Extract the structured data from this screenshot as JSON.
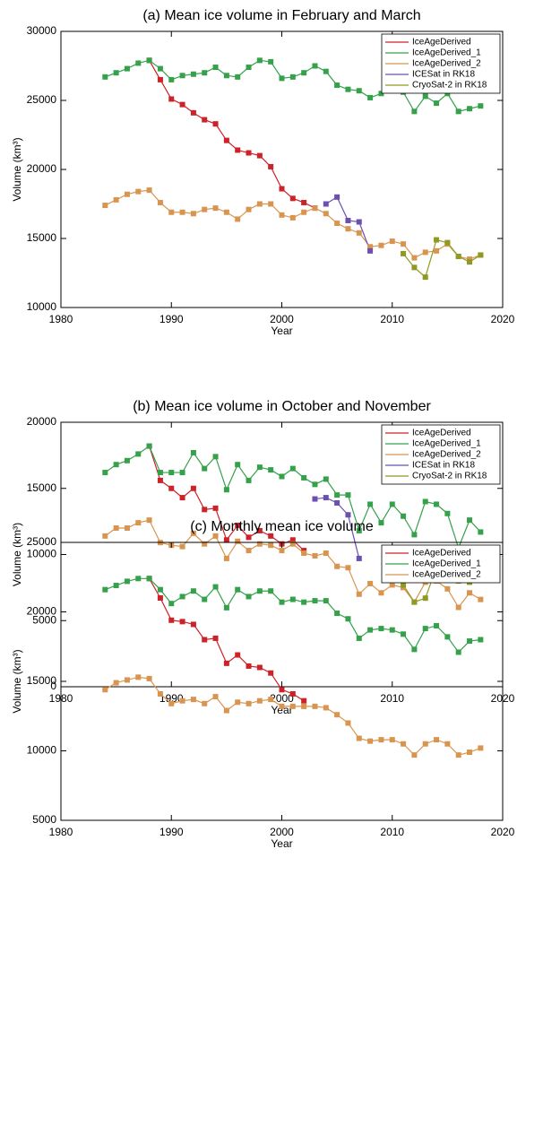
{
  "chart_data": [
    {
      "type": "line",
      "title": "(a) Mean ice volume in February and March",
      "x_label": "Year",
      "y_label": "Volume (km³)",
      "x": [
        1984,
        1985,
        1986,
        1987,
        1988,
        1989,
        1990,
        1991,
        1992,
        1993,
        1994,
        1995,
        1996,
        1997,
        1998,
        1999,
        2000,
        2001,
        2002,
        2003,
        2004,
        2005,
        2006,
        2007,
        2008,
        2009,
        2010,
        2011,
        2012,
        2013,
        2014,
        2015,
        2016,
        2017,
        2018
      ],
      "xlim": [
        1980,
        2020
      ],
      "xticks": [
        1980,
        1990,
        2000,
        2010,
        2020
      ],
      "ylim": [
        10000,
        30000
      ],
      "yticks": [
        10000,
        15000,
        20000,
        25000,
        30000
      ],
      "legend": "upper right",
      "series": [
        {
          "name": "IceAgeDerived",
          "color": "#cc2229",
          "values": [
            null,
            null,
            null,
            null,
            27900,
            26500,
            25100,
            24700,
            24100,
            23600,
            23300,
            22100,
            21400,
            21200,
            21000,
            20200,
            18600,
            17900,
            17600,
            17200,
            null,
            null,
            null,
            null,
            null,
            null,
            null,
            null,
            null,
            null,
            null,
            null,
            null,
            null,
            null
          ]
        },
        {
          "name": "IceAgeDerived_1",
          "color": "#35a14b",
          "values": [
            26700,
            27000,
            27300,
            27700,
            27900,
            27300,
            26500,
            26800,
            26900,
            27000,
            27400,
            26800,
            26700,
            27400,
            27900,
            27800,
            26600,
            26700,
            27000,
            27500,
            27100,
            26100,
            25800,
            25700,
            25200,
            25500,
            25800,
            25600,
            24200,
            25300,
            24800,
            25500,
            24200,
            24400,
            24600
          ]
        },
        {
          "name": "IceAgeDerived_2",
          "color": "#d89550",
          "values": [
            17400,
            17800,
            18200,
            18400,
            18500,
            17600,
            16900,
            16900,
            16800,
            17100,
            17200,
            16900,
            16400,
            17100,
            17500,
            17500,
            16700,
            16500,
            16900,
            17200,
            16800,
            16100,
            15700,
            15400,
            14400,
            14500,
            14800,
            14600,
            13600,
            14000,
            14100,
            14600,
            13700,
            13500,
            13800
          ]
        },
        {
          "name": "ICESat in RK18",
          "color": "#6b50b0",
          "values": [
            null,
            null,
            null,
            null,
            null,
            null,
            null,
            null,
            null,
            null,
            null,
            null,
            null,
            null,
            null,
            null,
            null,
            null,
            null,
            null,
            17500,
            18000,
            16300,
            16200,
            14100,
            null,
            null,
            null,
            null,
            null,
            null,
            null,
            null,
            null,
            null
          ]
        },
        {
          "name": "CryoSat-2 in RK18",
          "color": "#8f9a22",
          "values": [
            null,
            null,
            null,
            null,
            null,
            null,
            null,
            null,
            null,
            null,
            null,
            null,
            null,
            null,
            null,
            null,
            null,
            null,
            null,
            null,
            null,
            null,
            null,
            null,
            null,
            null,
            null,
            13900,
            12900,
            12200,
            14900,
            14700,
            13700,
            13300,
            13800
          ]
        }
      ]
    },
    {
      "type": "line",
      "title": "(b) Mean ice volume in October and November",
      "x_label": "Year",
      "y_label": "Volume (km³)",
      "x": [
        1984,
        1985,
        1986,
        1987,
        1988,
        1989,
        1990,
        1991,
        1992,
        1993,
        1994,
        1995,
        1996,
        1997,
        1998,
        1999,
        2000,
        2001,
        2002,
        2003,
        2004,
        2005,
        2006,
        2007,
        2008,
        2009,
        2010,
        2011,
        2012,
        2013,
        2014,
        2015,
        2016,
        2017,
        2018
      ],
      "xlim": [
        1980,
        2020
      ],
      "xticks": [
        1980,
        1990,
        2000,
        2010,
        2020
      ],
      "ylim": [
        0,
        20000
      ],
      "yticks": [
        0,
        5000,
        10000,
        15000,
        20000
      ],
      "legend": "upper right",
      "series": [
        {
          "name": "IceAgeDerived",
          "color": "#cc2229",
          "values": [
            null,
            null,
            null,
            null,
            18200,
            15600,
            15000,
            14300,
            15000,
            13400,
            13500,
            11100,
            12200,
            11300,
            11800,
            11400,
            10800,
            11100,
            10300,
            null,
            null,
            null,
            null,
            null,
            null,
            null,
            null,
            null,
            null,
            null,
            null,
            null,
            null,
            null,
            null
          ]
        },
        {
          "name": "IceAgeDerived_1",
          "color": "#35a14b",
          "values": [
            16200,
            16800,
            17100,
            17600,
            18200,
            16200,
            16200,
            16200,
            17700,
            16500,
            17400,
            14900,
            16800,
            15600,
            16600,
            16400,
            15900,
            16500,
            15800,
            15300,
            15700,
            14500,
            14500,
            11800,
            13800,
            12400,
            13800,
            12900,
            11500,
            14000,
            13800,
            13100,
            10500,
            12600,
            11700
          ]
        },
        {
          "name": "IceAgeDerived_2",
          "color": "#d89550",
          "values": [
            11400,
            12000,
            12000,
            12400,
            12600,
            10900,
            10700,
            10600,
            11600,
            10800,
            11400,
            9700,
            11000,
            10300,
            10800,
            10700,
            10300,
            10800,
            10100,
            9900,
            10100,
            9100,
            9000,
            7000,
            7800,
            7100,
            7700,
            7500,
            6400,
            7900,
            8000,
            7400,
            6000,
            7100,
            6600
          ]
        },
        {
          "name": "ICESat in RK18",
          "color": "#6b50b0",
          "values": [
            null,
            null,
            null,
            null,
            null,
            null,
            null,
            null,
            null,
            null,
            null,
            null,
            null,
            null,
            null,
            null,
            null,
            null,
            null,
            14200,
            14300,
            13900,
            13000,
            9700,
            null,
            null,
            null,
            null,
            null,
            null,
            null,
            null,
            null,
            null,
            null
          ]
        },
        {
          "name": "CryoSat-2 in RK18",
          "color": "#8f9a22",
          "values": [
            null,
            null,
            null,
            null,
            null,
            null,
            null,
            null,
            null,
            null,
            null,
            null,
            null,
            null,
            null,
            null,
            null,
            null,
            null,
            null,
            null,
            null,
            null,
            null,
            null,
            null,
            null,
            7700,
            6400,
            6700,
            9000,
            8300,
            8000,
            7900,
            8100
          ]
        }
      ]
    },
    {
      "type": "line",
      "title": "(c) Monthly mean ice volume",
      "x_label": "Year",
      "y_label": "Volume (km³)",
      "x": [
        1984,
        1985,
        1986,
        1987,
        1988,
        1989,
        1990,
        1991,
        1992,
        1993,
        1994,
        1995,
        1996,
        1997,
        1998,
        1999,
        2000,
        2001,
        2002,
        2003,
        2004,
        2005,
        2006,
        2007,
        2008,
        2009,
        2010,
        2011,
        2012,
        2013,
        2014,
        2015,
        2016,
        2017,
        2018
      ],
      "xlim": [
        1980,
        2020
      ],
      "xticks": [
        1980,
        1990,
        2000,
        2010,
        2020
      ],
      "ylim": [
        5000,
        25000
      ],
      "yticks": [
        5000,
        10000,
        15000,
        20000,
        25000
      ],
      "legend": "upper right",
      "series": [
        {
          "name": "IceAgeDerived",
          "color": "#cc2229",
          "values": [
            null,
            null,
            null,
            null,
            22400,
            21000,
            19400,
            19300,
            19100,
            18000,
            18100,
            16300,
            16900,
            16100,
            16000,
            15600,
            14400,
            14100,
            13600,
            null,
            null,
            null,
            null,
            null,
            null,
            null,
            null,
            null,
            null,
            null,
            null,
            null,
            null,
            null,
            null
          ]
        },
        {
          "name": "IceAgeDerived_1",
          "color": "#35a14b",
          "values": [
            21600,
            21900,
            22200,
            22400,
            22400,
            21600,
            20600,
            21100,
            21500,
            20900,
            21800,
            20300,
            21600,
            21100,
            21500,
            21500,
            20700,
            20900,
            20700,
            20800,
            20800,
            19900,
            19500,
            18100,
            18700,
            18800,
            18700,
            18400,
            17300,
            18800,
            19000,
            18200,
            17100,
            17900,
            18000
          ]
        },
        {
          "name": "IceAgeDerived_2",
          "color": "#d89550",
          "values": [
            14400,
            14900,
            15100,
            15300,
            15200,
            14100,
            13400,
            13600,
            13700,
            13400,
            13900,
            12900,
            13500,
            13400,
            13600,
            13700,
            13200,
            13200,
            13200,
            13200,
            13100,
            12600,
            12000,
            10900,
            10700,
            10800,
            10800,
            10500,
            9700,
            10500,
            10800,
            10500,
            9700,
            9900,
            10200
          ]
        }
      ]
    }
  ]
}
